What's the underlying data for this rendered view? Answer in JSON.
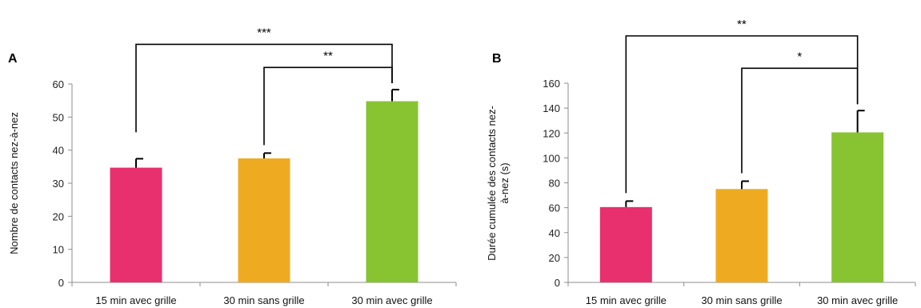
{
  "chart_data": [
    {
      "type": "bar",
      "panel_label": "A",
      "categories": [
        "15 min avec grille",
        "30 min sans grille",
        "30 min avec grille"
      ],
      "values": [
        34.7,
        37.5,
        54.8
      ],
      "errors": [
        2.7,
        1.6,
        3.5
      ],
      "colors": [
        "#e8306f",
        "#eeab22",
        "#88c332"
      ],
      "ylabel": "Nombre de contacts nez-à-nez",
      "ylim": [
        0,
        60
      ],
      "yticks": [
        0,
        10,
        20,
        30,
        40,
        50,
        60
      ],
      "significance": [
        {
          "from": 0,
          "to": 2,
          "label": "***",
          "level": 72
        },
        {
          "from": 1,
          "to": 2,
          "label": "**",
          "level": 65
        }
      ]
    },
    {
      "type": "bar",
      "panel_label": "B",
      "categories": [
        "15 min avec grille",
        "30 min sans grille",
        "30 min avec grille"
      ],
      "values": [
        60.5,
        75.0,
        120.5
      ],
      "errors": [
        4.8,
        6.3,
        17.5
      ],
      "colors": [
        "#e8306f",
        "#eeab22",
        "#88c332"
      ],
      "ylabel": [
        "Durée cumulée des contacts nez-",
        "à-nez (s)"
      ],
      "ylim": [
        0,
        160
      ],
      "yticks": [
        0,
        20,
        40,
        60,
        80,
        100,
        120,
        140,
        160
      ],
      "significance": [
        {
          "from": 0,
          "to": 2,
          "label": "**",
          "level": 198
        },
        {
          "from": 1,
          "to": 2,
          "label": "*",
          "level": 172
        }
      ]
    }
  ]
}
